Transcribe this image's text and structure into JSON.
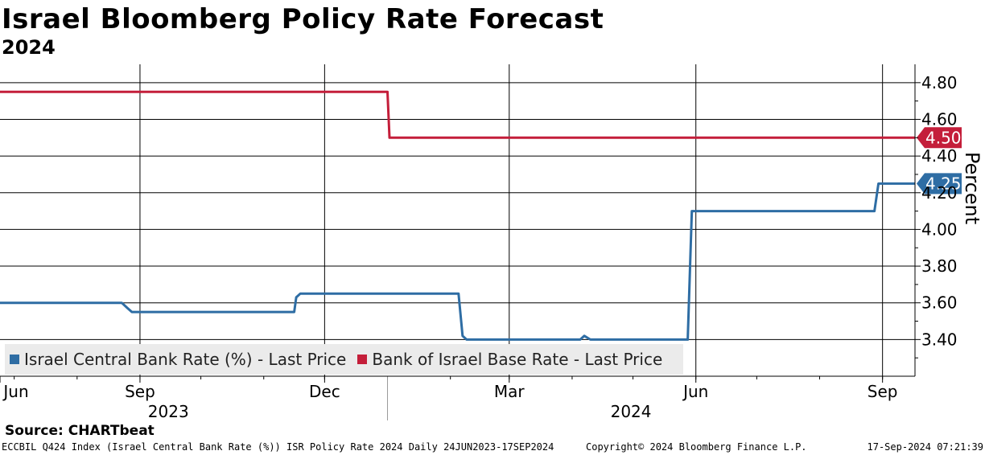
{
  "title": "Israel Bloomberg Policy Rate Forecast",
  "subtitle": "2024",
  "source": "Source: CHARTbeat",
  "footer": {
    "left": "ECCBIL Q424 Index (Israel Central Bank Rate (%)) ISR Policy Rate 2024  Daily 24JUN2023-17SEP2024",
    "center": "Copyright© 2024 Bloomberg Finance L.P.",
    "right": "17-Sep-2024 07:21:39"
  },
  "colors": {
    "blue": "#2e6da4",
    "red": "#c41e3a",
    "grid": "#000000"
  },
  "chart_data": {
    "type": "line",
    "ylabel": "Percent",
    "ylim": [
      3.2,
      4.9
    ],
    "yticks": [
      "4.80",
      "4.60",
      "4.40",
      "4.20",
      "4.00",
      "3.80",
      "3.60",
      "3.40"
    ],
    "ytick_values": [
      4.8,
      4.6,
      4.4,
      4.2,
      4.0,
      3.8,
      3.6,
      3.4
    ],
    "xlim": [
      "2023-06-24",
      "2024-09-17"
    ],
    "xticks": [
      {
        "label": "Jun",
        "date": "2023-06-24"
      },
      {
        "label": "Sep",
        "date": "2023-09-01"
      },
      {
        "label": "Dec",
        "date": "2023-12-01"
      },
      {
        "label": "Mar",
        "date": "2024-03-01"
      },
      {
        "label": "Jun",
        "date": "2024-06-01"
      },
      {
        "label": "Sep",
        "date": "2024-09-01"
      }
    ],
    "year_labels": [
      {
        "label": "2023",
        "date": "2023-09-15"
      },
      {
        "label": "2024",
        "date": "2024-04-30"
      }
    ],
    "year_divider": "2024-01-01",
    "legend_position": "bottom-left",
    "series": [
      {
        "name": "Israel Central Bank Rate (%) - Last Price",
        "color": "#2e6da4",
        "last_label": "4.25",
        "points": [
          [
            "2023-06-24",
            3.6
          ],
          [
            "2023-08-23",
            3.6
          ],
          [
            "2023-08-26",
            3.57
          ],
          [
            "2023-08-28",
            3.55
          ],
          [
            "2023-11-16",
            3.55
          ],
          [
            "2023-11-17",
            3.63
          ],
          [
            "2023-11-19",
            3.65
          ],
          [
            "2024-02-05",
            3.65
          ],
          [
            "2024-02-07",
            3.42
          ],
          [
            "2024-02-09",
            3.4
          ],
          [
            "2024-04-05",
            3.4
          ],
          [
            "2024-04-07",
            3.42
          ],
          [
            "2024-04-10",
            3.4
          ],
          [
            "2024-05-28",
            3.4
          ],
          [
            "2024-05-30",
            4.1
          ],
          [
            "2024-08-28",
            4.1
          ],
          [
            "2024-08-30",
            4.25
          ],
          [
            "2024-09-17",
            4.25
          ]
        ]
      },
      {
        "name": "Bank of Israel Base Rate - Last Price",
        "color": "#c41e3a",
        "last_label": "4.50",
        "points": [
          [
            "2023-06-24",
            4.75
          ],
          [
            "2024-01-01",
            4.75
          ],
          [
            "2024-01-02",
            4.5
          ],
          [
            "2024-09-17",
            4.5
          ]
        ]
      }
    ]
  }
}
